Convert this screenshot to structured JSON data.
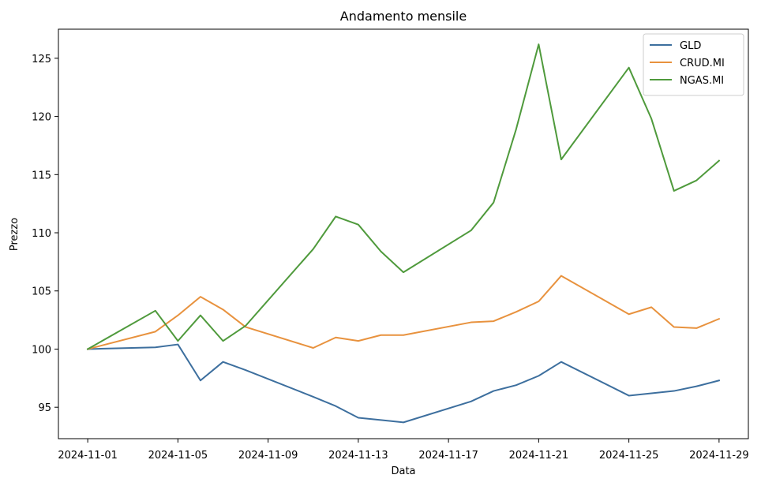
{
  "chart_data": {
    "type": "line",
    "title": "Andamento mensile",
    "xlabel": "Data",
    "ylabel": "Prezzo",
    "ylim": [
      92.3,
      127.5
    ],
    "yticks": [
      95,
      100,
      105,
      110,
      115,
      120,
      125
    ],
    "xticks": [
      "2024-11-01",
      "2024-11-05",
      "2024-11-09",
      "2024-11-13",
      "2024-11-17",
      "2024-11-21",
      "2024-11-25",
      "2024-11-29"
    ],
    "xlim": [
      "2024-10-30",
      "2024-11-30"
    ],
    "grid": false,
    "legend_position": "upper right",
    "series": [
      {
        "name": "GLD",
        "color": "#3d6f9e",
        "points": [
          [
            "2024-11-01",
            100.0
          ],
          [
            "2024-11-04",
            100.15
          ],
          [
            "2024-11-05",
            100.4
          ],
          [
            "2024-11-06",
            97.3
          ],
          [
            "2024-11-07",
            98.9
          ],
          [
            "2024-11-08",
            98.2
          ],
          [
            "2024-11-11",
            95.9
          ],
          [
            "2024-11-12",
            95.1
          ],
          [
            "2024-11-13",
            94.1
          ],
          [
            "2024-11-14",
            93.9
          ],
          [
            "2024-11-15",
            93.7
          ],
          [
            "2024-11-18",
            95.5
          ],
          [
            "2024-11-19",
            96.4
          ],
          [
            "2024-11-20",
            96.9
          ],
          [
            "2024-11-21",
            97.7
          ],
          [
            "2024-11-22",
            98.9
          ],
          [
            "2024-11-25",
            96.0
          ],
          [
            "2024-11-26",
            96.2
          ],
          [
            "2024-11-27",
            96.4
          ],
          [
            "2024-11-28",
            96.8
          ],
          [
            "2024-11-29",
            97.3
          ]
        ]
      },
      {
        "name": "CRUD.MI",
        "color": "#e8923e",
        "points": [
          [
            "2024-11-01",
            100.0
          ],
          [
            "2024-11-04",
            101.5
          ],
          [
            "2024-11-05",
            102.9
          ],
          [
            "2024-11-06",
            104.5
          ],
          [
            "2024-11-07",
            103.4
          ],
          [
            "2024-11-08",
            101.9
          ],
          [
            "2024-11-11",
            100.1
          ],
          [
            "2024-11-12",
            101.0
          ],
          [
            "2024-11-13",
            100.7
          ],
          [
            "2024-11-14",
            101.2
          ],
          [
            "2024-11-15",
            101.2
          ],
          [
            "2024-11-18",
            102.3
          ],
          [
            "2024-11-19",
            102.4
          ],
          [
            "2024-11-20",
            103.2
          ],
          [
            "2024-11-21",
            104.1
          ],
          [
            "2024-11-22",
            106.3
          ],
          [
            "2024-11-25",
            103.0
          ],
          [
            "2024-11-26",
            103.6
          ],
          [
            "2024-11-27",
            101.9
          ],
          [
            "2024-11-28",
            101.8
          ],
          [
            "2024-11-29",
            102.6
          ]
        ]
      },
      {
        "name": "NGAS.MI",
        "color": "#4f9a3c",
        "points": [
          [
            "2024-11-01",
            100.0
          ],
          [
            "2024-11-04",
            103.3
          ],
          [
            "2024-11-05",
            100.7
          ],
          [
            "2024-11-06",
            102.9
          ],
          [
            "2024-11-07",
            100.7
          ],
          [
            "2024-11-08",
            102.0
          ],
          [
            "2024-11-11",
            108.6
          ],
          [
            "2024-11-12",
            111.4
          ],
          [
            "2024-11-13",
            110.7
          ],
          [
            "2024-11-14",
            108.4
          ],
          [
            "2024-11-15",
            106.6
          ],
          [
            "2024-11-18",
            110.2
          ],
          [
            "2024-11-19",
            112.6
          ],
          [
            "2024-11-20",
            118.9
          ],
          [
            "2024-11-21",
            126.2
          ],
          [
            "2024-11-22",
            116.3
          ],
          [
            "2024-11-25",
            124.2
          ],
          [
            "2024-11-26",
            119.8
          ],
          [
            "2024-11-27",
            113.6
          ],
          [
            "2024-11-28",
            114.5
          ],
          [
            "2024-11-29",
            116.2
          ]
        ]
      }
    ]
  }
}
